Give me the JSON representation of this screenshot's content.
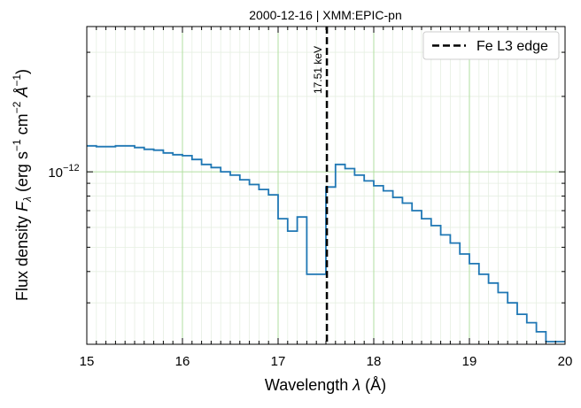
{
  "chart_data": {
    "type": "line",
    "drawstyle": "steps",
    "title": "2000-12-16 | XMM:EPIC-pn",
    "xlabel_text": "Wavelength ",
    "xlabel_symbol": "λ",
    "xlabel_unit": " (Å)",
    "ylabel_text": "Flux density ",
    "ylabel_symbol": "F",
    "ylabel_sub": "λ",
    "ylabel_unit_open": " (erg s",
    "ylabel_unit_exp1": "−1",
    "ylabel_unit_mid": " cm",
    "ylabel_unit_exp2": "−2",
    "ylabel_unit_ang": " Å",
    "ylabel_unit_exp3": "−1",
    "ylabel_unit_close": ")",
    "xlim": [
      15,
      20
    ],
    "ylim": [
      2.05e-13,
      3.8e-12
    ],
    "yscale": "log",
    "grid": true,
    "xticks": [
      15,
      16,
      17,
      18,
      19,
      20
    ],
    "xtick_labels": [
      "15",
      "16",
      "17",
      "18",
      "19",
      "20"
    ],
    "yticks": [
      1e-12
    ],
    "ytick_base": "10",
    "ytick_exp": "−12",
    "series": [
      {
        "color": "#1f77b4",
        "x": [
          15.0,
          15.1,
          15.2,
          15.3,
          15.4,
          15.5,
          15.6,
          15.7,
          15.8,
          15.9,
          16.0,
          16.1,
          16.2,
          16.3,
          16.4,
          16.5,
          16.6,
          16.7,
          16.8,
          16.9,
          17.0,
          17.1,
          17.2,
          17.3,
          17.4,
          17.5,
          17.6,
          17.7,
          17.8,
          17.9,
          18.0,
          18.1,
          18.2,
          18.3,
          18.4,
          18.5,
          18.6,
          18.7,
          18.8,
          18.9,
          19.0,
          19.1,
          19.2,
          19.3,
          19.4,
          19.5,
          19.6,
          19.7,
          19.8,
          19.9,
          20.0
        ],
        "y": [
          1.27e-12,
          1.26e-12,
          1.26e-12,
          1.27e-12,
          1.27e-12,
          1.25e-12,
          1.23e-12,
          1.22e-12,
          1.19e-12,
          1.17e-12,
          1.16e-12,
          1.12e-12,
          1.07e-12,
          1.04e-12,
          1e-12,
          9.7e-13,
          9.3e-13,
          8.9e-13,
          8.5e-13,
          8.1e-13,
          6.5e-13,
          5.8e-13,
          6.6e-13,
          3.9e-13,
          3.9e-13,
          8.7e-13,
          1.07e-12,
          1.03e-12,
          9.7e-13,
          9.2e-13,
          8.8e-13,
          8.4e-13,
          7.9e-13,
          7.5e-13,
          7e-13,
          6.5e-13,
          6.1e-13,
          5.6e-13,
          5.2e-13,
          4.7e-13,
          4.3e-13,
          3.9e-13,
          3.6e-13,
          3.3e-13,
          3e-13,
          2.7e-13,
          2.5e-13,
          2.3e-13,
          2.1e-13,
          2.1e-13,
          2.1e-13
        ]
      }
    ],
    "annotations": [
      {
        "type": "vline",
        "x": 17.51,
        "color": "#000000",
        "linestyle": "dashed",
        "label": "17.51 keV"
      }
    ],
    "legend": {
      "position": "top-right",
      "entries": [
        {
          "label": "Fe L3 edge",
          "style": "dashed",
          "color": "#000000"
        }
      ]
    },
    "colors": {
      "series": "#1f77b4",
      "grid_major": "#b2dfa0",
      "grid_minor": "#e6efe2",
      "axes": "#000000"
    }
  }
}
